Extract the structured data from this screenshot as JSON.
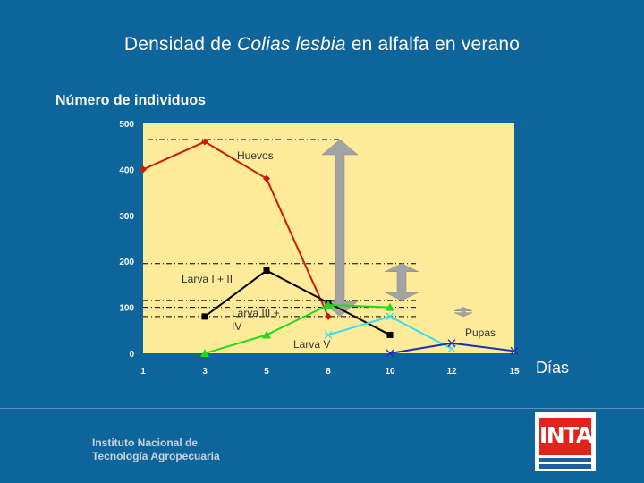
{
  "slide": {
    "title_prefix": "Densidad de ",
    "title_species": "Colias lesbia",
    "title_suffix": " en alfalfa en verano",
    "ylabel": "Número de individuos",
    "xlabel": "Días",
    "institution_line1": "Instituto Nacional de",
    "institution_line2": "Tecnología Agropecuaria",
    "logo_text": "INTA"
  },
  "colors": {
    "background": "#0e659b",
    "plot_area": "#ffeb99",
    "huevos": "#cc1a0a",
    "larva_1_2": "#000000",
    "larva_3_4": "#27d61e",
    "larva_5": "#37dcef",
    "pupas": "#1a2fb8",
    "arrow": "#a3a3a3"
  },
  "chart_data": {
    "type": "line",
    "categories": [
      "1",
      "3",
      "5",
      "8",
      "10",
      "12",
      "15"
    ],
    "ylim": [
      0,
      500
    ],
    "yticks": [
      "0",
      "100",
      "200",
      "300",
      "400",
      "500"
    ],
    "series": [
      {
        "name": "Huevos",
        "color_key": "huevos",
        "marker": "diamond",
        "values": [
          400,
          460,
          380,
          80,
          null,
          null,
          null
        ]
      },
      {
        "name": "Larva I + II",
        "color_key": "larva_1_2",
        "marker": "square",
        "values": [
          null,
          80,
          180,
          110,
          40,
          null,
          null
        ]
      },
      {
        "name": "Larva III + IV",
        "color_key": "larva_3_4",
        "marker": "triangle",
        "values": [
          null,
          0,
          40,
          105,
          100,
          null,
          null
        ]
      },
      {
        "name": "Larva V",
        "color_key": "larva_5",
        "marker": "x",
        "values": [
          null,
          null,
          null,
          40,
          80,
          10,
          null
        ]
      },
      {
        "name": "Pupas",
        "color_key": "pupas",
        "marker": "x",
        "values": [
          null,
          null,
          null,
          null,
          0,
          22,
          5
        ]
      }
    ],
    "reference_lines": [
      465,
      195,
      115,
      100,
      80
    ],
    "double_arrows": [
      {
        "x": "8",
        "from": 80,
        "to": 465
      },
      {
        "x": "10",
        "from": 115,
        "to": 195
      },
      {
        "x": "12",
        "from": 80,
        "to": 100
      }
    ],
    "grid": false
  }
}
